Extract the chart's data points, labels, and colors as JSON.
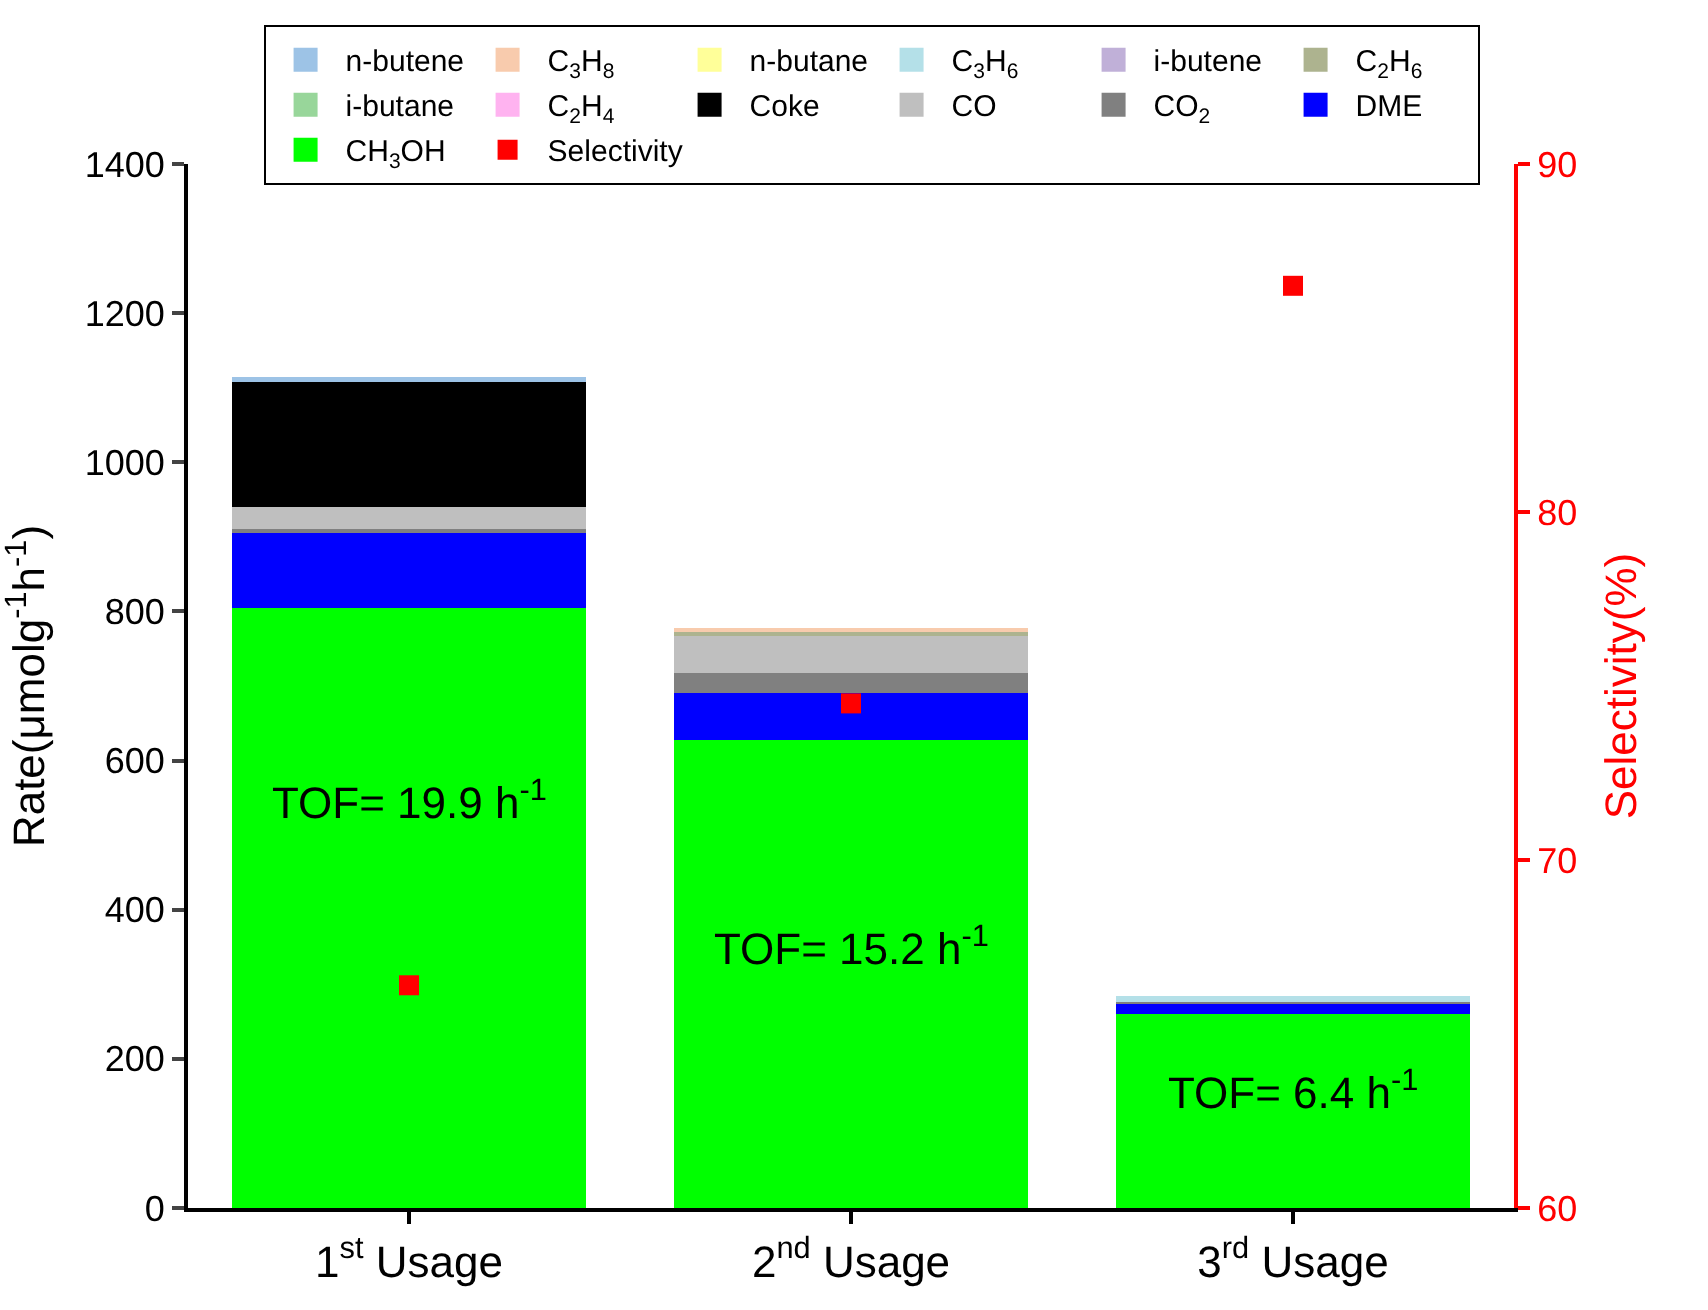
{
  "chart_data": {
    "type": "bar",
    "stacked": true,
    "categories": [
      "1$^{st}$ Usage",
      "2$^{nd}$ Usage",
      "3$^{rd}$ Usage"
    ],
    "ylabel": "Rate(μmolg$^{-1}$h$^{-1}$)",
    "y2label": "Selectivity(%)",
    "ylim": [
      0,
      1400
    ],
    "yticks": [
      0,
      200,
      400,
      600,
      800,
      1000,
      1200,
      1400
    ],
    "y2lim": [
      60,
      90
    ],
    "y2ticks": [
      60,
      70,
      80,
      90
    ],
    "legend": "top",
    "series": [
      {
        "name": "CH$_{3}$OH",
        "color": "#00ff00",
        "values": [
          805,
          627,
          260
        ]
      },
      {
        "name": "DME",
        "color": "#0000ff",
        "values": [
          100,
          64,
          14
        ]
      },
      {
        "name": "CO$_{2}$",
        "color": "#808080",
        "values": [
          6,
          26,
          2
        ]
      },
      {
        "name": "CO",
        "color": "#bfbfbf",
        "values": [
          29,
          51,
          0
        ]
      },
      {
        "name": "Coke",
        "color": "#000000",
        "values": [
          168,
          0,
          0
        ]
      },
      {
        "name": "C$_{2}$H$_{4}$",
        "color": "#ffb3f0",
        "values": [
          0,
          0,
          0
        ]
      },
      {
        "name": "i-butane",
        "color": "#98d69a",
        "values": [
          0,
          0,
          0
        ]
      },
      {
        "name": "C$_{2}$H$_{6}$",
        "color": "#adb38f",
        "values": [
          0,
          5,
          0
        ]
      },
      {
        "name": "i-butene",
        "color": "#c0b0d8",
        "values": [
          0,
          0,
          0
        ]
      },
      {
        "name": "C$_{3}$H$_{6}$",
        "color": "#b4e0e8",
        "values": [
          0,
          0,
          8
        ]
      },
      {
        "name": "n-butane",
        "color": "#ffff99",
        "values": [
          0,
          0,
          0
        ]
      },
      {
        "name": "C$_{3}$H$_{8}$",
        "color": "#f8cbad",
        "values": [
          0,
          5,
          0
        ]
      },
      {
        "name": "n-butene",
        "color": "#9dc3e6",
        "values": [
          6,
          0,
          0
        ]
      },
      {
        "name": "Selectivity",
        "type": "scatter",
        "axis": "y2",
        "marker": "square",
        "color": "#ff0000",
        "values": [
          66.4,
          74.5,
          86.5
        ]
      }
    ],
    "annotations": [
      "TOF= 19.9 h$^{-1}$",
      "TOF= 15.2 h$^{-1}$",
      "TOF= 6.4 h$^{-1}$"
    ]
  }
}
